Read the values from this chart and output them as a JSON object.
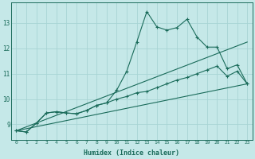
{
  "xlabel": "Humidex (Indice chaleur)",
  "bg_color": "#c5e8e8",
  "grid_color": "#a8d4d4",
  "line_color": "#1a6b5a",
  "xlim": [
    -0.5,
    23.5
  ],
  "ylim": [
    8.4,
    13.8
  ],
  "xticks": [
    0,
    1,
    2,
    3,
    4,
    5,
    6,
    7,
    8,
    9,
    10,
    11,
    12,
    13,
    14,
    15,
    16,
    17,
    18,
    19,
    20,
    21,
    22,
    23
  ],
  "yticks": [
    9,
    10,
    11,
    12,
    13
  ],
  "line1_x": [
    0,
    1,
    2,
    3,
    4,
    5,
    6,
    7,
    8,
    9,
    10,
    11,
    12,
    13,
    14,
    15,
    16,
    17,
    18,
    19,
    20,
    21,
    22,
    23
  ],
  "line1_y": [
    8.75,
    8.7,
    9.05,
    9.45,
    9.5,
    9.45,
    9.42,
    9.55,
    9.75,
    9.85,
    10.35,
    11.1,
    12.25,
    13.45,
    12.85,
    12.72,
    12.82,
    13.15,
    12.45,
    12.05,
    12.05,
    11.2,
    11.35,
    10.6
  ],
  "line2_x": [
    0,
    1,
    2,
    3,
    4,
    5,
    6,
    7,
    8,
    9,
    10,
    11,
    12,
    13,
    14,
    15,
    16,
    17,
    18,
    19,
    20,
    21,
    22,
    23
  ],
  "line2_y": [
    8.75,
    8.7,
    9.05,
    9.45,
    9.5,
    9.45,
    9.42,
    9.55,
    9.75,
    9.85,
    10.0,
    10.1,
    10.25,
    10.3,
    10.45,
    10.6,
    10.75,
    10.85,
    11.0,
    11.15,
    11.3,
    10.9,
    11.1,
    10.6
  ],
  "line3_x": [
    0,
    23
  ],
  "line3_y": [
    8.75,
    10.6
  ],
  "line4_x": [
    0,
    23
  ],
  "line4_y": [
    8.75,
    12.25
  ]
}
